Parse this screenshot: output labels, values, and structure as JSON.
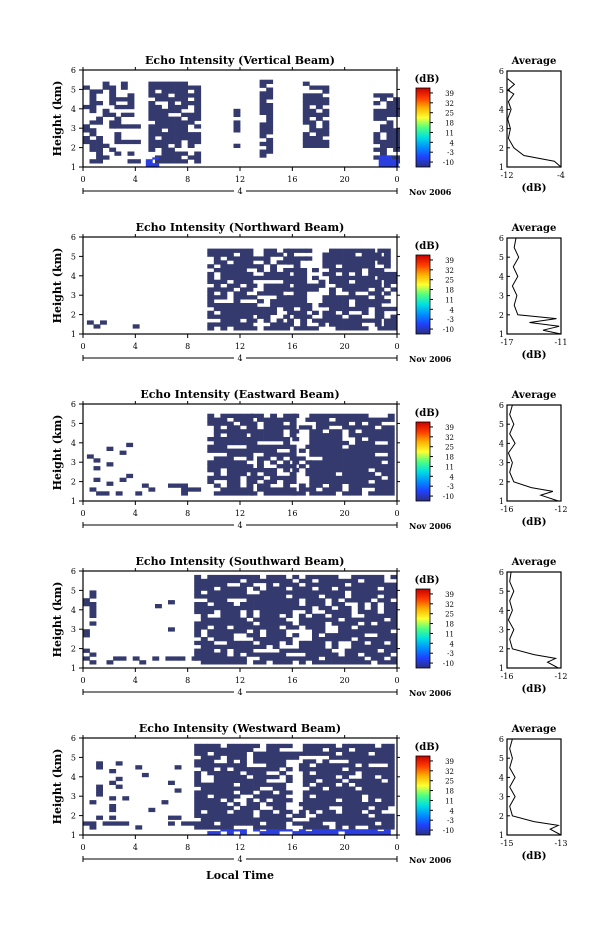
{
  "figure": {
    "xlabel": "Local Time",
    "colorbar_unit": "(dB)",
    "colorbar_ticks": [
      "39",
      "32",
      "25",
      "18",
      "11",
      "4",
      "-3",
      "-10"
    ],
    "colors": {
      "dominant_cell": "#343a6e",
      "strong_cell": "#2b3fe0",
      "frame": "#000000",
      "background": "#ffffff",
      "colorbar_stops": [
        "#c80000",
        "#ff3a00",
        "#ffb000",
        "#ffff30",
        "#50ff80",
        "#00e0e0",
        "#0090ff",
        "#2040ff",
        "#2c2f80"
      ]
    }
  },
  "chart_data": [
    {
      "type": "heatmap",
      "title": "Echo Intensity (Vertical Beam)",
      "ylabel": "Height (km)",
      "ylim": [
        1,
        6
      ],
      "yticks": [
        "1",
        "2",
        "3",
        "4",
        "5",
        "6"
      ],
      "xlim": [
        0,
        24
      ],
      "xticks": [
        "0",
        "4",
        "8",
        "12",
        "16",
        "20",
        "0"
      ],
      "date_label": "4",
      "month_label": "Nov 2006",
      "value_range_db": [
        -10,
        39
      ],
      "activity": [
        {
          "t": [
            0.0,
            2.4
          ],
          "h": [
            1.2,
            5.4
          ],
          "fill": 0.45
        },
        {
          "t": [
            2.4,
            4.0
          ],
          "h": [
            1.2,
            5.4
          ],
          "fill": 0.2
        },
        {
          "t": [
            5.0,
            7.5
          ],
          "h": [
            1.2,
            5.4
          ],
          "fill": 0.85
        },
        {
          "t": [
            7.5,
            9.0
          ],
          "h": [
            1.2,
            5.4
          ],
          "fill": 0.75
        },
        {
          "t": [
            11.5,
            11.9
          ],
          "h": [
            2.0,
            4.0
          ],
          "fill": 0.5
        },
        {
          "t": [
            13.5,
            14.2
          ],
          "h": [
            1.5,
            5.4
          ],
          "fill": 0.7
        },
        {
          "t": [
            16.8,
            18.6
          ],
          "h": [
            2.0,
            5.4
          ],
          "fill": 0.75
        },
        {
          "t": [
            20.5,
            21.0
          ],
          "h": [
            1.4,
            1.8
          ],
          "fill": 0.5
        },
        {
          "t": [
            22.2,
            24.0
          ],
          "h": [
            1.2,
            4.8
          ],
          "fill": 0.7
        }
      ],
      "strong_activity": [
        {
          "t": [
            4.8,
            5.8
          ],
          "h": [
            1.0,
            1.5
          ]
        },
        {
          "t": [
            22.6,
            24.0
          ],
          "h": [
            1.0,
            1.6
          ]
        }
      ],
      "profile": {
        "title": "Average",
        "xlabel": "(dB)",
        "xticks": [
          "-12",
          "-4"
        ],
        "xlim": [
          -12,
          -4
        ],
        "height_km": [
          1.0,
          1.3,
          1.6,
          2.0,
          2.5,
          3.0,
          3.5,
          4.0,
          4.4,
          4.8,
          5.0,
          5.3,
          5.6
        ],
        "mean_db": [
          -3.8,
          -5.0,
          -9.5,
          -11.0,
          -11.8,
          -11.5,
          -11.9,
          -11.4,
          -11.8,
          -11.0,
          -11.9,
          -10.9,
          -11.9
        ]
      }
    },
    {
      "type": "heatmap",
      "title": "Echo Intensity (Northward Beam)",
      "ylabel": "Height (km)",
      "ylim": [
        1,
        6
      ],
      "yticks": [
        "1",
        "2",
        "3",
        "4",
        "5",
        "6"
      ],
      "xlim": [
        0,
        24
      ],
      "xticks": [
        "0",
        "4",
        "8",
        "12",
        "16",
        "20",
        "0"
      ],
      "date_label": "4",
      "month_label": "Nov 2006",
      "value_range_db": [
        -10,
        39
      ],
      "activity": [
        {
          "t": [
            9.5,
            12.8
          ],
          "h": [
            1.2,
            5.3
          ],
          "fill": 0.8
        },
        {
          "t": [
            12.8,
            15.6
          ],
          "h": [
            1.2,
            5.3
          ],
          "fill": 0.6
        },
        {
          "t": [
            15.6,
            17.0
          ],
          "h": [
            1.2,
            5.3
          ],
          "fill": 0.8
        },
        {
          "t": [
            17.0,
            18.3
          ],
          "h": [
            1.2,
            5.3
          ],
          "fill": 0.3
        },
        {
          "t": [
            18.3,
            22.5
          ],
          "h": [
            1.2,
            5.3
          ],
          "fill": 0.75
        },
        {
          "t": [
            22.5,
            23.6
          ],
          "h": [
            1.2,
            5.3
          ],
          "fill": 0.65
        },
        {
          "t": [
            0.3,
            1.8
          ],
          "h": [
            1.3,
            1.6
          ],
          "fill": 0.4
        },
        {
          "t": [
            3.8,
            4.2
          ],
          "h": [
            1.3,
            1.5
          ],
          "fill": 0.5
        },
        {
          "t": [
            7.8,
            8.2
          ],
          "h": [
            1.3,
            1.5
          ],
          "fill": 0.5
        }
      ],
      "strong_activity": [],
      "profile": {
        "title": "Average",
        "xlabel": "(dB)",
        "xticks": [
          "-17",
          "-11"
        ],
        "xlim": [
          -17,
          -11
        ],
        "height_km": [
          1.0,
          1.2,
          1.4,
          1.6,
          1.8,
          2.0,
          2.5,
          3.0,
          3.5,
          4.0,
          4.5,
          5.0,
          5.5,
          6.0
        ],
        "mean_db": [
          -11.0,
          -13.0,
          -11.2,
          -14.5,
          -11.5,
          -15.8,
          -16.2,
          -15.9,
          -16.4,
          -15.8,
          -16.3,
          -15.7,
          -16.2,
          -16.0
        ]
      }
    },
    {
      "type": "heatmap",
      "title": "Echo Intensity (Eastward Beam)",
      "ylabel": "Height (km)",
      "ylim": [
        1,
        6
      ],
      "yticks": [
        "1",
        "2",
        "3",
        "4",
        "5",
        "6"
      ],
      "xlim": [
        0,
        24
      ],
      "xticks": [
        "0",
        "4",
        "8",
        "12",
        "16",
        "20",
        "0"
      ],
      "date_label": "4",
      "month_label": "Nov 2006",
      "value_range_db": [
        -10,
        39
      ],
      "activity": [
        {
          "t": [
            0.0,
            9.5
          ],
          "h": [
            1.3,
            1.8
          ],
          "fill": 0.35
        },
        {
          "t": [
            0.3,
            4.0
          ],
          "h": [
            1.8,
            4.0
          ],
          "fill": 0.15
        },
        {
          "t": [
            9.5,
            12.8
          ],
          "h": [
            1.3,
            5.4
          ],
          "fill": 0.8
        },
        {
          "t": [
            12.8,
            16.0
          ],
          "h": [
            1.3,
            5.4
          ],
          "fill": 0.7
        },
        {
          "t": [
            16.0,
            17.3
          ],
          "h": [
            1.3,
            5.4
          ],
          "fill": 0.4
        },
        {
          "t": [
            17.3,
            23.6
          ],
          "h": [
            1.3,
            5.4
          ],
          "fill": 0.85
        }
      ],
      "strong_activity": [],
      "profile": {
        "title": "Average",
        "xlabel": "(dB)",
        "xticks": [
          "-16",
          "-12"
        ],
        "xlim": [
          -16,
          -12
        ],
        "height_km": [
          1.0,
          1.3,
          1.5,
          1.7,
          2.0,
          2.5,
          3.0,
          3.5,
          4.0,
          4.5,
          5.0,
          5.5,
          6.0
        ],
        "mean_db": [
          -12.2,
          -13.5,
          -12.6,
          -14.2,
          -15.5,
          -15.8,
          -15.6,
          -15.9,
          -15.4,
          -15.8,
          -15.5,
          -15.8,
          -15.6
        ]
      }
    },
    {
      "type": "heatmap",
      "title": "Echo Intensity (Southward Beam)",
      "ylabel": "Height (km)",
      "ylim": [
        1,
        6
      ],
      "yticks": [
        "1",
        "2",
        "3",
        "4",
        "5",
        "6"
      ],
      "xlim": [
        0,
        24
      ],
      "xticks": [
        "0",
        "4",
        "8",
        "12",
        "16",
        "20",
        "0"
      ],
      "date_label": "4",
      "month_label": "Nov 2006",
      "value_range_db": [
        -10,
        39
      ],
      "activity": [
        {
          "t": [
            0.0,
            0.8
          ],
          "h": [
            1.2,
            5.0
          ],
          "fill": 0.55
        },
        {
          "t": [
            0.8,
            8.5
          ],
          "h": [
            1.2,
            1.5
          ],
          "fill": 0.3
        },
        {
          "t": [
            5.5,
            7.0
          ],
          "h": [
            2.5,
            5.0
          ],
          "fill": 0.15
        },
        {
          "t": [
            8.5,
            11.0
          ],
          "h": [
            1.2,
            5.7
          ],
          "fill": 0.8
        },
        {
          "t": [
            11.0,
            16.0
          ],
          "h": [
            1.2,
            5.7
          ],
          "fill": 0.75
        },
        {
          "t": [
            16.0,
            17.0
          ],
          "h": [
            1.2,
            5.7
          ],
          "fill": 0.5
        },
        {
          "t": [
            17.0,
            23.6
          ],
          "h": [
            1.2,
            5.7
          ],
          "fill": 0.8
        }
      ],
      "strong_activity": [],
      "profile": {
        "title": "Average",
        "xlabel": "(dB)",
        "xticks": [
          "-16",
          "-12"
        ],
        "xlim": [
          -16,
          -12
        ],
        "height_km": [
          1.0,
          1.3,
          1.5,
          1.7,
          2.0,
          2.5,
          3.0,
          3.5,
          4.0,
          4.5,
          5.0,
          5.5,
          6.0
        ],
        "mean_db": [
          -12.2,
          -13.0,
          -12.4,
          -14.0,
          -15.6,
          -15.8,
          -15.5,
          -15.9,
          -15.6,
          -15.8,
          -15.5,
          -15.8,
          -15.7
        ]
      }
    },
    {
      "type": "heatmap",
      "title": "Echo Intensity (Westward Beam)",
      "ylabel": "Height (km)",
      "ylim": [
        1,
        6
      ],
      "yticks": [
        "1",
        "2",
        "3",
        "4",
        "5",
        "6"
      ],
      "xlim": [
        0,
        24
      ],
      "xticks": [
        "0",
        "4",
        "8",
        "12",
        "16",
        "20",
        "0"
      ],
      "date_label": "4",
      "month_label": "Nov 2006",
      "value_range_db": [
        -10,
        39
      ],
      "activity": [
        {
          "t": [
            0.0,
            8.5
          ],
          "h": [
            1.3,
            1.6
          ],
          "fill": 0.35
        },
        {
          "t": [
            0.5,
            7.5
          ],
          "h": [
            1.8,
            5.0
          ],
          "fill": 0.1
        },
        {
          "t": [
            8.5,
            11.0
          ],
          "h": [
            1.3,
            5.6
          ],
          "fill": 0.8
        },
        {
          "t": [
            11.0,
            15.5
          ],
          "h": [
            1.3,
            5.6
          ],
          "fill": 0.75
        },
        {
          "t": [
            15.5,
            16.8
          ],
          "h": [
            1.3,
            5.6
          ],
          "fill": 0.35
        },
        {
          "t": [
            16.8,
            23.6
          ],
          "h": [
            1.3,
            5.6
          ],
          "fill": 0.8
        }
      ],
      "strong_activity": [
        {
          "t": [
            9.5,
            23.5
          ],
          "h": [
            1.0,
            1.3
          ]
        }
      ],
      "profile": {
        "title": "Average",
        "xlabel": "(dB)",
        "xticks": [
          "-15",
          "-13"
        ],
        "xlim": [
          -15,
          -13
        ],
        "height_km": [
          1.0,
          1.3,
          1.5,
          1.7,
          2.0,
          2.5,
          3.0,
          3.5,
          4.0,
          4.5,
          5.0,
          5.5,
          6.0
        ],
        "mean_db": [
          -12.9,
          -13.4,
          -13.1,
          -14.0,
          -14.8,
          -14.9,
          -14.7,
          -14.9,
          -14.7,
          -14.9,
          -14.8,
          -14.9,
          -14.8
        ]
      }
    }
  ]
}
